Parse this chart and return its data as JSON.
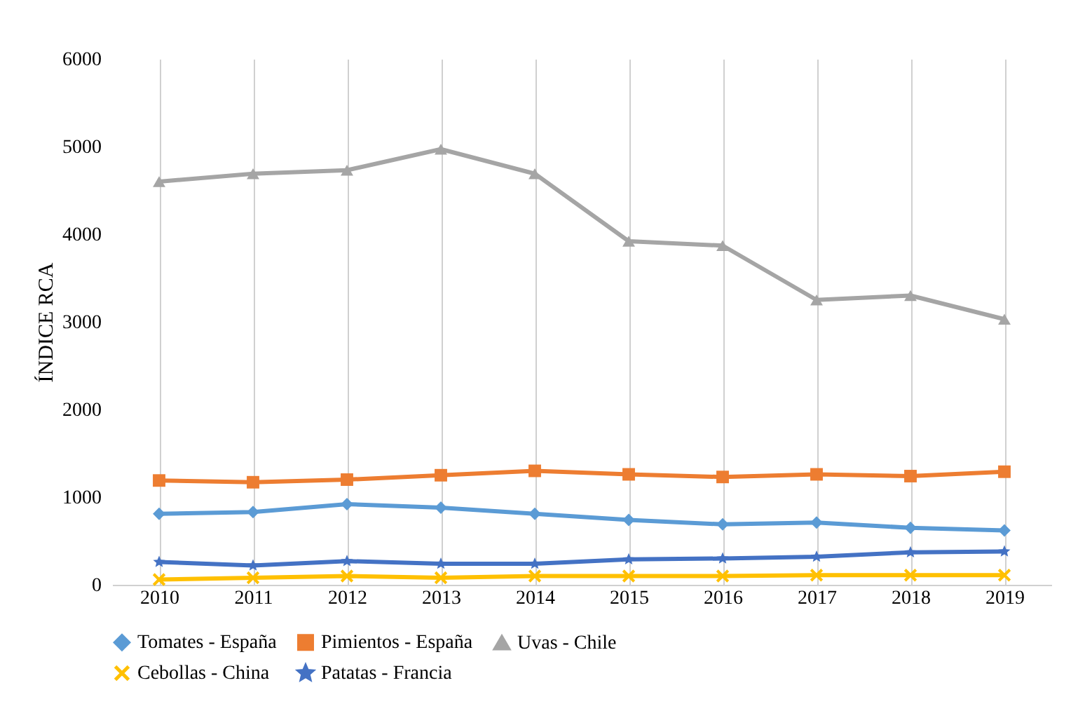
{
  "chart_data": {
    "type": "line",
    "ylabel": "ÍNDICE RCA",
    "categories": [
      "2010",
      "2011",
      "2012",
      "2013",
      "2014",
      "2015",
      "2016",
      "2017",
      "2018",
      "2019"
    ],
    "ylim": [
      0,
      6000
    ],
    "yticks": [
      0,
      1000,
      2000,
      3000,
      4000,
      5000,
      6000
    ],
    "grid": "x",
    "legend": "bottom",
    "series": [
      {
        "name": "Tomates - España",
        "color": "#5b9bd5",
        "marker": "diamond",
        "values": [
          810,
          830,
          920,
          880,
          810,
          740,
          690,
          710,
          650,
          620
        ]
      },
      {
        "name": "Pimientos - España",
        "color": "#ed7d31",
        "marker": "square",
        "values": [
          1190,
          1170,
          1200,
          1250,
          1300,
          1260,
          1230,
          1260,
          1240,
          1290
        ]
      },
      {
        "name": "Uvas - Chile",
        "color": "#a5a5a5",
        "marker": "triangle",
        "values": [
          4600,
          4690,
          4730,
          4970,
          4690,
          3920,
          3870,
          3250,
          3300,
          3030
        ]
      },
      {
        "name": "Cebollas - China",
        "color": "#ffc000",
        "marker": "cross",
        "values": [
          60,
          80,
          100,
          80,
          100,
          100,
          100,
          110,
          110,
          110
        ]
      },
      {
        "name": "Patatas - Francia",
        "color": "#4472c4",
        "marker": "star",
        "values": [
          260,
          220,
          270,
          240,
          240,
          290,
          300,
          320,
          370,
          380
        ]
      }
    ]
  }
}
